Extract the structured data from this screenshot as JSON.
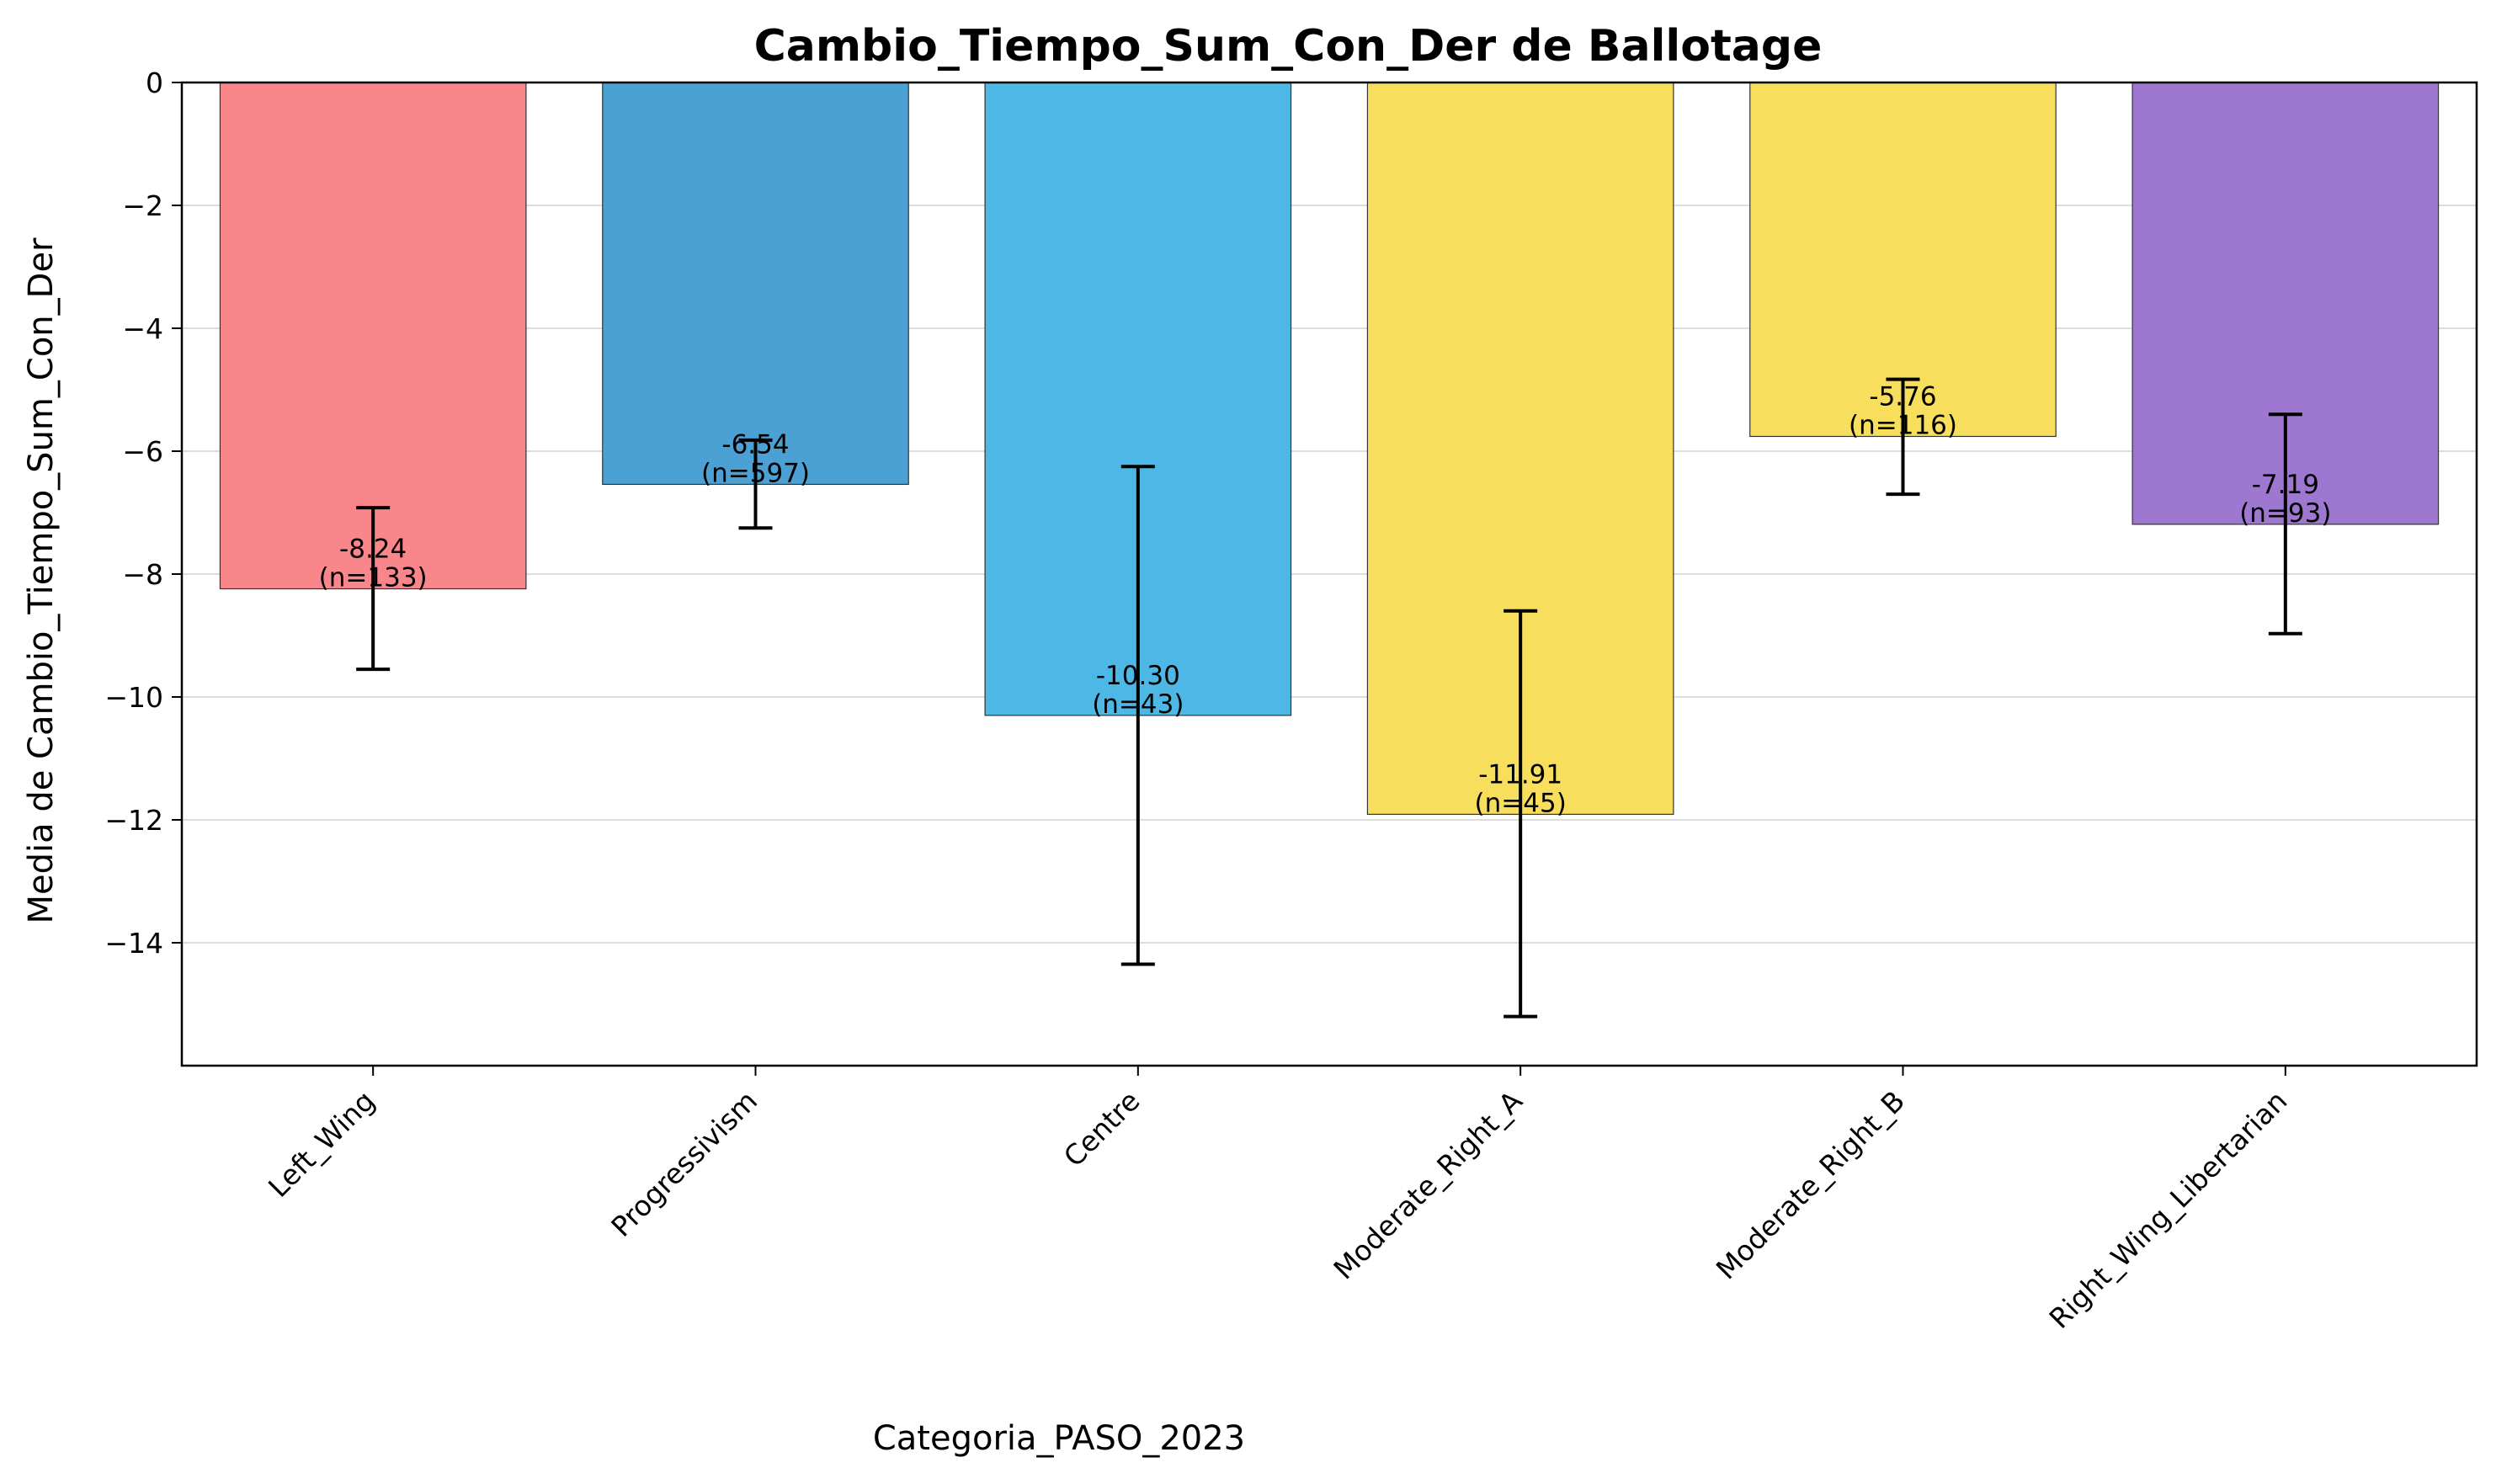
{
  "chart_data": {
    "type": "bar",
    "title": "Cambio_Tiempo_Sum_Con_Der de Ballotage",
    "xlabel": "Categoria_PASO_2023",
    "ylabel": "Media de Cambio_Tiempo_Sum_Con_Der",
    "ylim": [
      -16,
      0
    ],
    "yticks": [
      0,
      -2,
      -4,
      -6,
      -8,
      -10,
      -12,
      -14
    ],
    "ytick_labels": [
      "0",
      "−2",
      "−4",
      "−6",
      "−8",
      "−10",
      "−12",
      "−14"
    ],
    "grid": "horizontal",
    "categories": [
      "Left_Wing",
      "Progressivism",
      "Centre",
      "Moderate_Right_A",
      "Moderate_Right_B",
      "Right_Wing_Libertarian"
    ],
    "values": [
      -8.24,
      -6.54,
      -10.3,
      -11.91,
      -5.76,
      -7.19
    ],
    "error_bars": [
      {
        "low": -9.55,
        "high": -6.92
      },
      {
        "low": -7.25,
        "high": -5.82
      },
      {
        "low": -14.35,
        "high": -6.25
      },
      {
        "low": -15.2,
        "high": -8.6
      },
      {
        "low": -6.7,
        "high": -4.83
      },
      {
        "low": -8.97,
        "high": -5.4
      }
    ],
    "counts": [
      133,
      597,
      43,
      45,
      116,
      93
    ],
    "value_labels": [
      "-8.24",
      "-6.54",
      "-10.30",
      "-11.91",
      "-5.76",
      "-7.19"
    ],
    "count_labels": [
      "(n=133)",
      "(n=597)",
      "(n=43)",
      "(n=45)",
      "(n=116)",
      "(n=93)"
    ],
    "colors": [
      "#F8868B",
      "#4BA1D4",
      "#4DB8E6",
      "#F8DE5D",
      "#F8DE5D",
      "#9E78D0"
    ]
  }
}
